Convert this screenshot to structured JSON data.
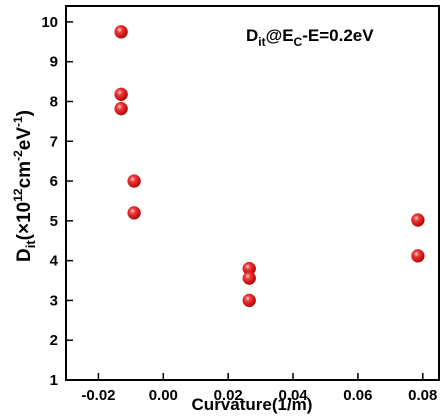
{
  "chart_data": {
    "type": "scatter",
    "xlabel": "Curvature(1/m)",
    "ylabel": {
      "main": "D",
      "sub": "it",
      "paren_open": "(×10",
      "sup1": "12",
      "unit": "cm",
      "sup2": "-2",
      "unit2": "eV",
      "sup3": "-1",
      "paren_close": ")"
    },
    "annotation": {
      "main": "D",
      "sub": "it",
      "mid": "@E",
      "sub2": "C",
      "rest": "-E=0.2eV"
    },
    "xlim": [
      -0.03,
      0.085
    ],
    "ylim": [
      1,
      10.4
    ],
    "xticks": [
      -0.02,
      0.0,
      0.02,
      0.04,
      0.06,
      0.08
    ],
    "xtick_labels": [
      "-0.02",
      "0.00",
      "0.02",
      "0.04",
      "0.06",
      "0.08"
    ],
    "yticks": [
      1,
      2,
      3,
      4,
      5,
      6,
      7,
      8,
      9,
      10
    ],
    "ytick_labels": [
      "1",
      "2",
      "3",
      "4",
      "5",
      "6",
      "7",
      "8",
      "9",
      "10"
    ],
    "grid": false,
    "legend": "none",
    "marker_color": "#e02020",
    "points": [
      {
        "x": -0.013,
        "y": 9.75
      },
      {
        "x": -0.013,
        "y": 8.18
      },
      {
        "x": -0.013,
        "y": 7.82
      },
      {
        "x": -0.009,
        "y": 6.0
      },
      {
        "x": -0.009,
        "y": 5.2
      },
      {
        "x": 0.0265,
        "y": 3.8
      },
      {
        "x": 0.0265,
        "y": 3.56
      },
      {
        "x": 0.0265,
        "y": 3.0
      },
      {
        "x": 0.0785,
        "y": 5.02
      },
      {
        "x": 0.0785,
        "y": 4.12
      }
    ]
  }
}
